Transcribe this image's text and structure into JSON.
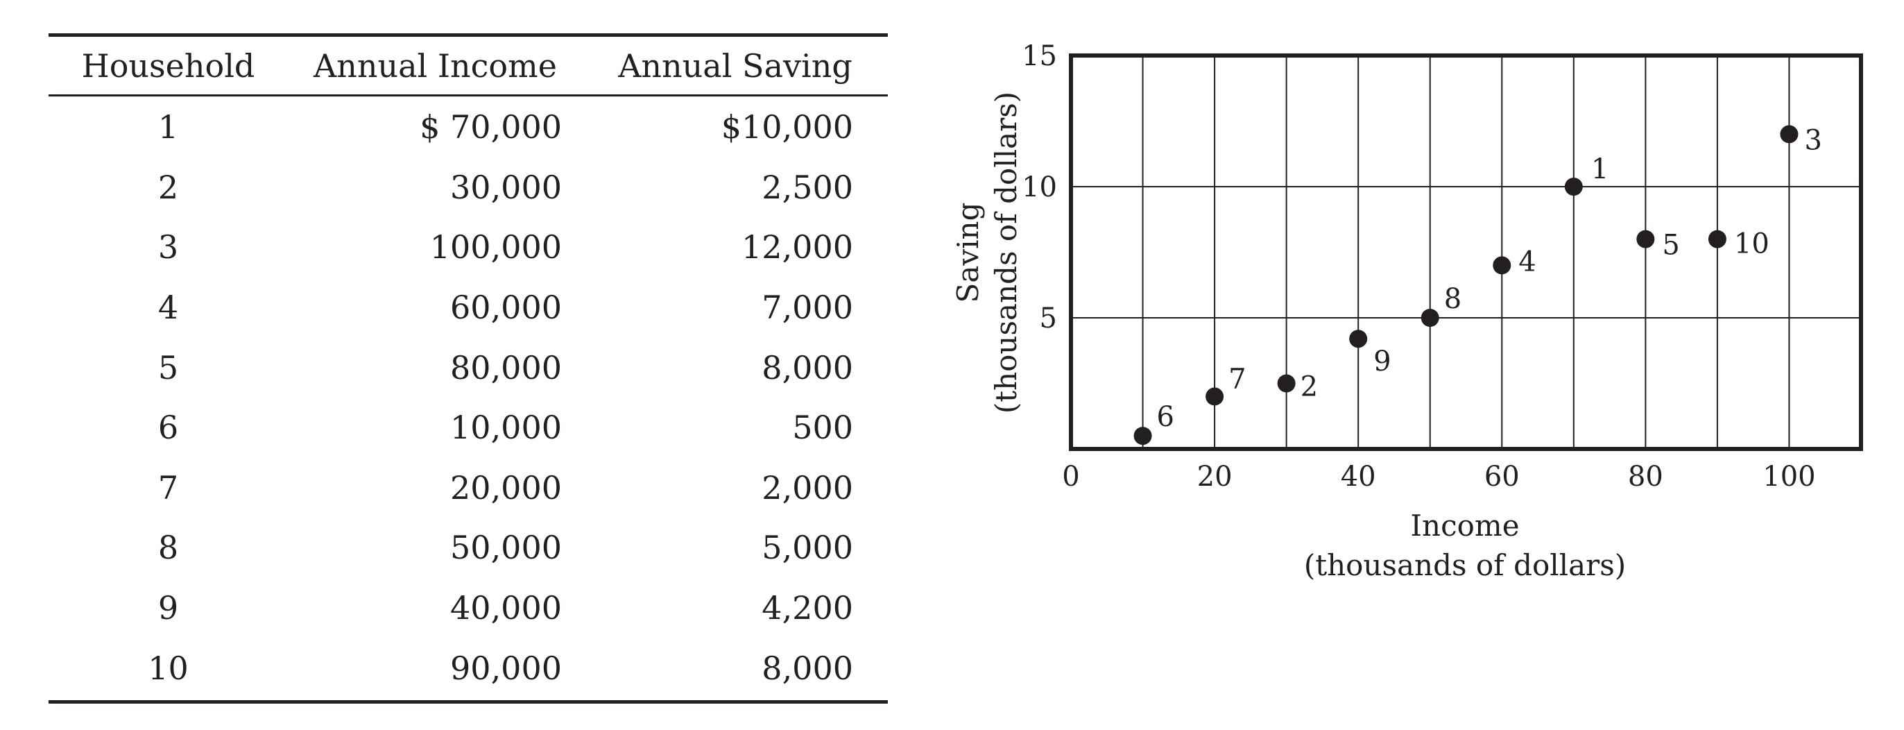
{
  "table": {
    "headers": [
      "Household",
      "Annual Income",
      "Annual Saving"
    ],
    "rows": [
      {
        "household": "1",
        "income": "$ 70,000",
        "saving": "$10,000"
      },
      {
        "household": "2",
        "income": "30,000",
        "saving": "2,500"
      },
      {
        "household": "3",
        "income": "100,000",
        "saving": "12,000"
      },
      {
        "household": "4",
        "income": "60,000",
        "saving": "7,000"
      },
      {
        "household": "5",
        "income": "80,000",
        "saving": "8,000"
      },
      {
        "household": "6",
        "income": "10,000",
        "saving": "500"
      },
      {
        "household": "7",
        "income": "20,000",
        "saving": "2,000"
      },
      {
        "household": "8",
        "income": "50,000",
        "saving": "5,000"
      },
      {
        "household": "9",
        "income": "40,000",
        "saving": "4,200"
      },
      {
        "household": "10",
        "income": "90,000",
        "saving": "8,000"
      }
    ]
  },
  "chart_data": {
    "type": "scatter",
    "xlabel": "Income\n(thousands of dollars)",
    "ylabel": "Saving\n(thousands of dollars)",
    "xlim": [
      0,
      110
    ],
    "ylim": [
      0,
      15
    ],
    "xticks": [
      0,
      20,
      40,
      60,
      80,
      100
    ],
    "yticks": [
      5,
      10,
      15
    ],
    "grid": true,
    "points": [
      {
        "label": "1",
        "x": 70,
        "y": 10
      },
      {
        "label": "2",
        "x": 30,
        "y": 2.5
      },
      {
        "label": "3",
        "x": 100,
        "y": 12
      },
      {
        "label": "4",
        "x": 60,
        "y": 7
      },
      {
        "label": "5",
        "x": 80,
        "y": 8
      },
      {
        "label": "6",
        "x": 10,
        "y": 0.5
      },
      {
        "label": "7",
        "x": 20,
        "y": 2
      },
      {
        "label": "8",
        "x": 50,
        "y": 5
      },
      {
        "label": "9",
        "x": 40,
        "y": 4.2
      },
      {
        "label": "10",
        "x": 90,
        "y": 8
      }
    ]
  }
}
